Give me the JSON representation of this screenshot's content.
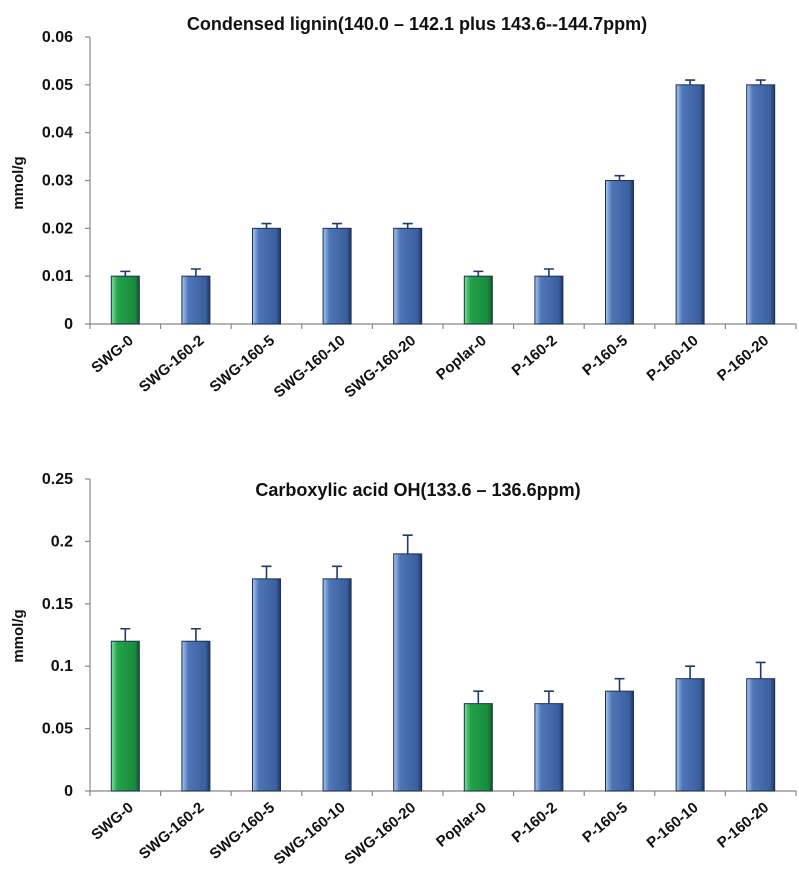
{
  "colors": {
    "green": "#1f9a45",
    "green_light": "#6fdc8c",
    "blue": "#3f64a3",
    "blue_light": "#9cc0ee",
    "bar_outline": "#1d2f52"
  },
  "chart_data": [
    {
      "type": "bar",
      "title": "Condensed lignin(140.0 – 142.1 plus 143.6--144.7ppm)",
      "xlabel": "",
      "ylabel": "mmol/g",
      "ylim": [
        0,
        0.06
      ],
      "yticks": [
        "0",
        "0.01",
        "0.02",
        "0.03",
        "0.04",
        "0.05",
        "0.06"
      ],
      "grid": false,
      "categories": [
        "SWG-0",
        "SWG-160-2",
        "SWG-160-5",
        "SWG-160-10",
        "SWG-160-20",
        "Poplar-0",
        "P-160-2",
        "P-160-5",
        "P-160-10",
        "P-160-20"
      ],
      "values": [
        0.01,
        0.01,
        0.02,
        0.02,
        0.02,
        0.01,
        0.01,
        0.03,
        0.05,
        0.05
      ],
      "errors": [
        0.001,
        0.0015,
        0.001,
        0.001,
        0.001,
        0.001,
        0.0015,
        0.001,
        0.001,
        0.001
      ],
      "bar_colors": [
        "green",
        "blue",
        "blue",
        "blue",
        "blue",
        "green",
        "blue",
        "blue",
        "blue",
        "blue"
      ]
    },
    {
      "type": "bar",
      "title": "Carboxylic acid OH(133.6 – 136.6ppm)",
      "xlabel": "",
      "ylabel": "mmol/g",
      "ylim": [
        0,
        0.25
      ],
      "yticks": [
        "0",
        "0.05",
        "0.1",
        "0.15",
        "0.2",
        "0.25"
      ],
      "grid": false,
      "categories": [
        "SWG-0",
        "SWG-160-2",
        "SWG-160-5",
        "SWG-160-10",
        "SWG-160-20",
        "Poplar-0",
        "P-160-2",
        "P-160-5",
        "P-160-10",
        "P-160-20"
      ],
      "values": [
        0.12,
        0.12,
        0.17,
        0.17,
        0.19,
        0.07,
        0.07,
        0.08,
        0.09,
        0.09
      ],
      "errors": [
        0.01,
        0.01,
        0.01,
        0.01,
        0.015,
        0.01,
        0.01,
        0.01,
        0.01,
        0.013
      ],
      "bar_colors": [
        "green",
        "blue",
        "blue",
        "blue",
        "blue",
        "green",
        "blue",
        "blue",
        "blue",
        "blue"
      ]
    }
  ]
}
